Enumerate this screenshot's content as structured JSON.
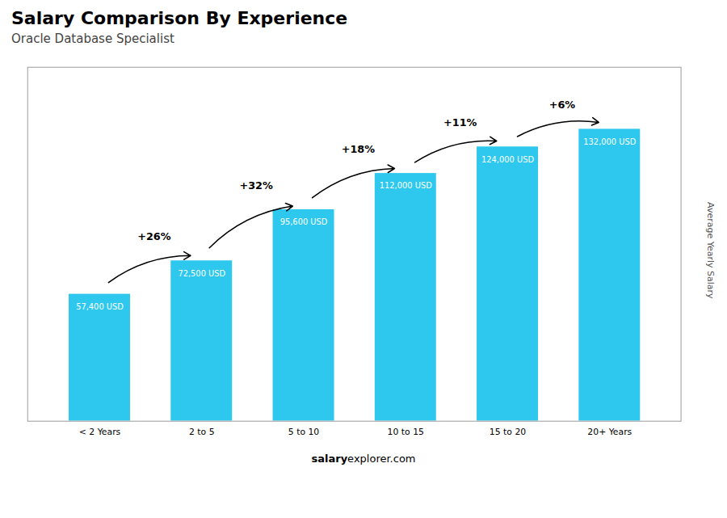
{
  "chart_data": {
    "type": "bar",
    "title": "Salary Comparison By Experience",
    "subtitle": "Oracle Database Specialist",
    "categories": [
      "< 2 Years",
      "2 to 5",
      "5 to 10",
      "10 to 15",
      "15 to 20",
      "20+ Years"
    ],
    "values": [
      57400,
      72500,
      95600,
      112000,
      124000,
      132000
    ],
    "value_labels": [
      "57,400 USD",
      "72,500 USD",
      "95,600 USD",
      "112,000 USD",
      "124,000 USD",
      "132,000 USD"
    ],
    "data_labels": true,
    "annotations": [
      "+26%",
      "+32%",
      "+18%",
      "+11%",
      "+6%"
    ],
    "color": "#2ec8ee",
    "ylabel": "Average Yearly Salary",
    "watermark": [
      "salary",
      "explorer.com"
    ],
    "ylim": [
      0,
      160000
    ],
    "tick_labels": "x"
  }
}
